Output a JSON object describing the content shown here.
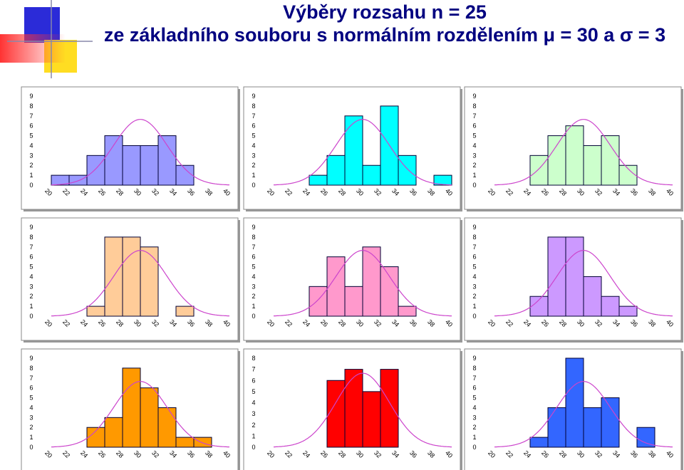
{
  "slide": {
    "title_lines": [
      "Výběry rozsahu  n  =  25",
      "ze základního souboru  s normálním rozdělením μ = 30  a  σ  =  3"
    ]
  },
  "chart_data": [
    {
      "type": "histogram",
      "bins": [
        20,
        22,
        24,
        26,
        28,
        30,
        32,
        34,
        36,
        38,
        40
      ],
      "values": [
        1,
        1,
        3,
        5,
        4,
        4,
        5,
        2,
        0,
        0
      ],
      "color": "#9999ff",
      "xlim": [
        20,
        40
      ],
      "xticks": [
        20,
        22,
        24,
        26,
        28,
        30,
        32,
        34,
        36,
        38,
        40
      ],
      "ylim": [
        0,
        9
      ],
      "yticks": [
        0,
        1,
        2,
        3,
        4,
        5,
        6,
        7,
        8,
        9
      ],
      "curve": {
        "mean": 30,
        "sd": 3,
        "color": "#cc44cc"
      }
    },
    {
      "type": "histogram",
      "bins": [
        20,
        22,
        24,
        26,
        28,
        30,
        32,
        34,
        36,
        38,
        40
      ],
      "values": [
        0,
        0,
        1,
        3,
        7,
        2,
        8,
        3,
        0,
        1
      ],
      "color": "#00ffff",
      "xlim": [
        20,
        40
      ],
      "xticks": [
        20,
        22,
        24,
        26,
        28,
        30,
        32,
        34,
        36,
        38,
        40
      ],
      "ylim": [
        0,
        9
      ],
      "yticks": [
        0,
        1,
        2,
        3,
        4,
        5,
        6,
        7,
        8,
        9
      ],
      "curve": {
        "mean": 30,
        "sd": 3,
        "color": "#cc44cc"
      }
    },
    {
      "type": "histogram",
      "bins": [
        20,
        22,
        24,
        26,
        28,
        30,
        32,
        34,
        36,
        38,
        40
      ],
      "values": [
        0,
        0,
        3,
        5,
        6,
        4,
        5,
        2,
        0,
        0
      ],
      "color": "#ccffcc",
      "xlim": [
        20,
        40
      ],
      "xticks": [
        20,
        22,
        24,
        26,
        28,
        30,
        32,
        34,
        36,
        38,
        40
      ],
      "ylim": [
        0,
        9
      ],
      "yticks": [
        0,
        1,
        2,
        3,
        4,
        5,
        6,
        7,
        8,
        9
      ],
      "curve": {
        "mean": 30,
        "sd": 3,
        "color": "#cc44cc"
      }
    },
    {
      "type": "histogram",
      "bins": [
        20,
        22,
        24,
        26,
        28,
        30,
        32,
        34,
        36,
        38,
        40
      ],
      "values": [
        0,
        0,
        1,
        8,
        8,
        7,
        0,
        1,
        0,
        0
      ],
      "color": "#ffcc99",
      "xlim": [
        20,
        40
      ],
      "xticks": [
        20,
        22,
        24,
        26,
        28,
        30,
        32,
        34,
        36,
        38,
        40
      ],
      "ylim": [
        0,
        9
      ],
      "yticks": [
        0,
        1,
        2,
        3,
        4,
        5,
        6,
        7,
        8,
        9
      ],
      "curve": {
        "mean": 30,
        "sd": 3,
        "color": "#cc44cc"
      }
    },
    {
      "type": "histogram",
      "bins": [
        20,
        22,
        24,
        26,
        28,
        30,
        32,
        34,
        36,
        38,
        40
      ],
      "values": [
        0,
        0,
        3,
        6,
        3,
        7,
        5,
        1,
        0,
        0
      ],
      "color": "#ff99cc",
      "xlim": [
        20,
        40
      ],
      "xticks": [
        20,
        22,
        24,
        26,
        28,
        30,
        32,
        34,
        36,
        38,
        40
      ],
      "ylim": [
        0,
        9
      ],
      "yticks": [
        0,
        1,
        2,
        3,
        4,
        5,
        6,
        7,
        8,
        9
      ],
      "curve": {
        "mean": 30,
        "sd": 3,
        "color": "#cc44cc"
      }
    },
    {
      "type": "histogram",
      "bins": [
        20,
        22,
        24,
        26,
        28,
        30,
        32,
        34,
        36,
        38,
        40
      ],
      "values": [
        0,
        0,
        2,
        8,
        8,
        4,
        2,
        1,
        0,
        0
      ],
      "color": "#cc99ff",
      "xlim": [
        20,
        40
      ],
      "xticks": [
        20,
        22,
        24,
        26,
        28,
        30,
        32,
        34,
        36,
        38,
        40
      ],
      "ylim": [
        0,
        9
      ],
      "yticks": [
        0,
        1,
        2,
        3,
        4,
        5,
        6,
        7,
        8,
        9
      ],
      "curve": {
        "mean": 30,
        "sd": 3,
        "color": "#cc44cc"
      }
    },
    {
      "type": "histogram",
      "bins": [
        20,
        22,
        24,
        26,
        28,
        30,
        32,
        34,
        36,
        38,
        40
      ],
      "values": [
        0,
        0,
        2,
        3,
        8,
        6,
        4,
        1,
        1,
        0
      ],
      "color": "#ff9900",
      "xlim": [
        20,
        40
      ],
      "xticks": [
        20,
        22,
        24,
        26,
        28,
        30,
        32,
        34,
        36,
        38,
        40
      ],
      "ylim": [
        0,
        9
      ],
      "yticks": [
        0,
        1,
        2,
        3,
        4,
        5,
        6,
        7,
        8,
        9
      ],
      "curve": {
        "mean": 30,
        "sd": 3,
        "color": "#cc44cc"
      }
    },
    {
      "type": "histogram",
      "bins": [
        20,
        22,
        24,
        26,
        28,
        30,
        32,
        34,
        36,
        38,
        40
      ],
      "values": [
        0,
        0,
        0,
        6,
        7,
        5,
        7,
        0,
        0,
        0
      ],
      "color": "#ff0000",
      "xlim": [
        20,
        40
      ],
      "xticks": [
        20,
        22,
        24,
        26,
        28,
        30,
        32,
        34,
        36,
        38,
        40
      ],
      "ylim": [
        0,
        8
      ],
      "yticks": [
        0,
        1,
        2,
        3,
        4,
        5,
        6,
        7,
        8
      ],
      "curve": {
        "mean": 30,
        "sd": 3,
        "color": "#cc44cc"
      }
    },
    {
      "type": "histogram",
      "bins": [
        20,
        22,
        24,
        26,
        28,
        30,
        32,
        34,
        36,
        38,
        40
      ],
      "values": [
        0,
        0,
        1,
        4,
        9,
        4,
        5,
        0,
        2,
        0
      ],
      "color": "#3366ff",
      "xlim": [
        20,
        40
      ],
      "xticks": [
        20,
        22,
        24,
        26,
        28,
        30,
        32,
        34,
        36,
        38,
        40
      ],
      "ylim": [
        0,
        9
      ],
      "yticks": [
        0,
        1,
        2,
        3,
        4,
        5,
        6,
        7,
        8,
        9
      ],
      "curve": {
        "mean": 30,
        "sd": 3,
        "color": "#cc44cc"
      }
    }
  ]
}
